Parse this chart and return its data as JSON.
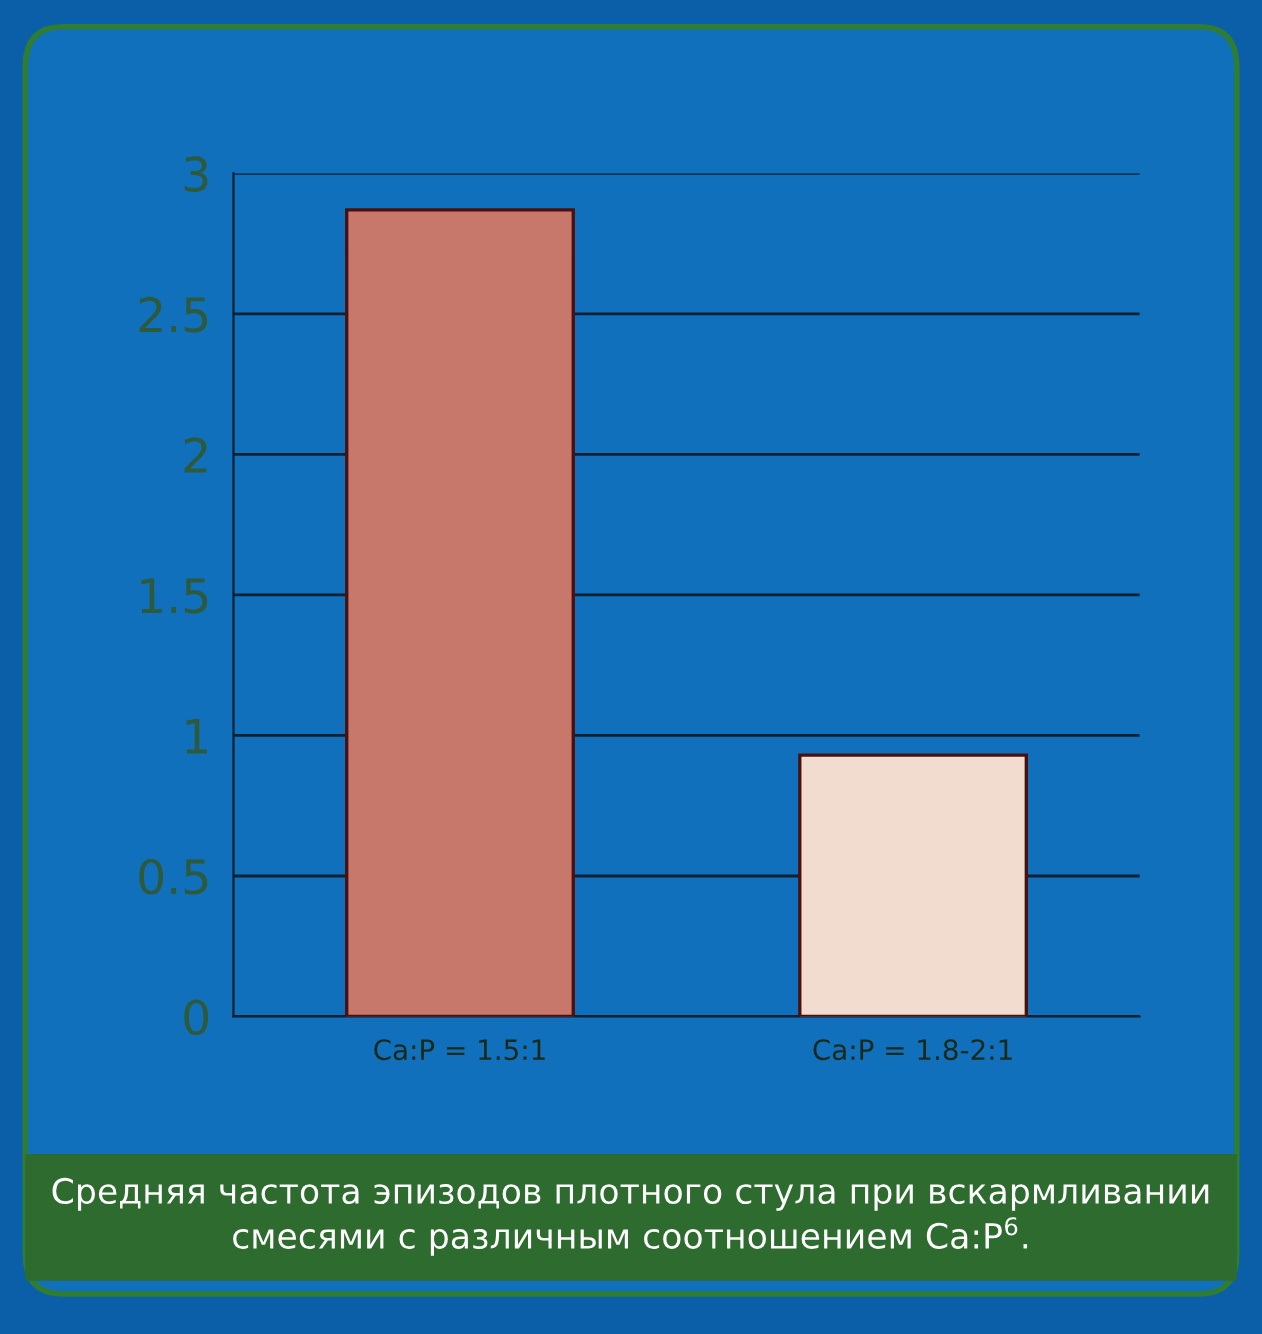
{
  "chart_data": {
    "type": "bar",
    "categories": [
      "Ca:P = 1.5:1",
      "Ca:P = 1.8-2:1"
    ],
    "values": [
      2.87,
      0.93
    ],
    "colors": [
      "#c8786a",
      "#f2dcd0"
    ],
    "ylim": [
      0,
      3
    ],
    "yticks": [
      0,
      0.5,
      1,
      1.5,
      2,
      2.5,
      3
    ],
    "grid": "y",
    "legend": false,
    "annotations": [
      "Средняя частота эпизодов плотного стула при вскармливании смесями с различным соотношением Ca:P$^{6}$."
    ]
  }
}
